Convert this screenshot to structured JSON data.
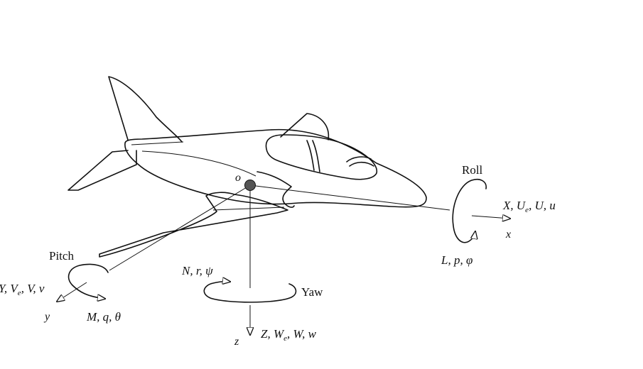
{
  "origin": "o",
  "roll": {
    "title": "Roll",
    "force": [
      "X",
      "U",
      "e",
      "U",
      "u"
    ],
    "axis": "x",
    "moment": "L, p, φ"
  },
  "pitch": {
    "title": "Pitch",
    "force": [
      "Y",
      "V",
      "e",
      "V",
      "v"
    ],
    "axis": "y",
    "moment": [
      "M",
      "q",
      "θ"
    ]
  },
  "yaw": {
    "title": "Yaw",
    "moment": "N, r, ψ",
    "force": [
      "Z",
      "W",
      "e",
      "W",
      "w"
    ],
    "axis": "z"
  },
  "colors": {
    "ink": "#111111",
    "origin_dot": "#555555"
  }
}
